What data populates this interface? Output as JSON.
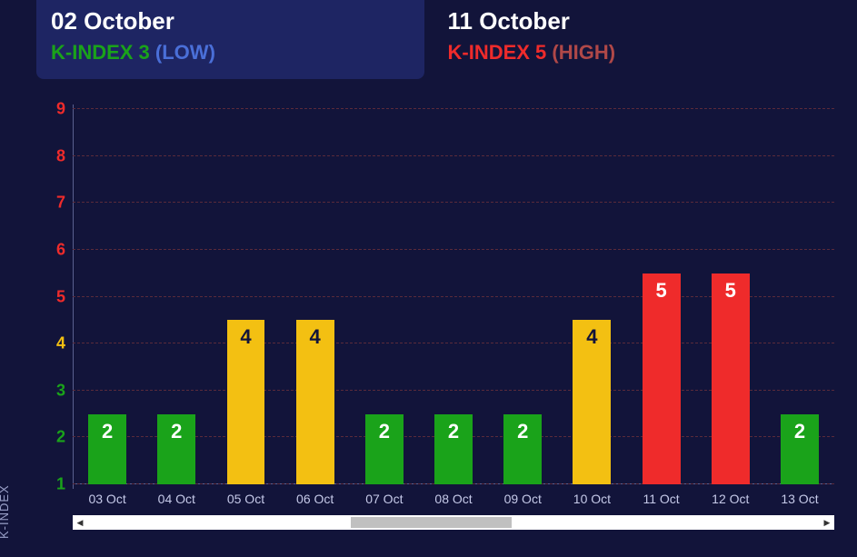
{
  "colors": {
    "bg": "#12143a",
    "card_active_bg": "#1e2563",
    "green": "#1aa31a",
    "yellow": "#f3c012",
    "red": "#ef2b2b",
    "white": "#ffffff",
    "axis_text": "#c5c9e8",
    "axis_line": "#5a608f",
    "grid_dash": "#5a2a3a",
    "ytitle": "#9aa0c8"
  },
  "header": {
    "left": {
      "date": "02 October",
      "index_label": "K-INDEX 3",
      "index_color": "#1aa31a",
      "level": "(LOW)",
      "level_color": "#4a6fd8",
      "active": true
    },
    "right": {
      "date": "11 October",
      "index_label": "K-INDEX 5",
      "index_color": "#ef2b2b",
      "level": "(HIGH)",
      "level_color": "#b04848",
      "active": false
    }
  },
  "chart": {
    "type": "bar",
    "y_title": "K-INDEX",
    "ymin": 1,
    "ymax": 9,
    "yticks": [
      {
        "v": 1,
        "color": "#1aa31a"
      },
      {
        "v": 2,
        "color": "#1aa31a"
      },
      {
        "v": 3,
        "color": "#1aa31a"
      },
      {
        "v": 4,
        "color": "#f3c012"
      },
      {
        "v": 5,
        "color": "#ef2b2b"
      },
      {
        "v": 6,
        "color": "#ef2b2b"
      },
      {
        "v": 7,
        "color": "#ef2b2b"
      },
      {
        "v": 8,
        "color": "#ef2b2b"
      },
      {
        "v": 9,
        "color": "#ef2b2b"
      }
    ],
    "grid_dash_at": [
      1,
      2,
      3,
      4,
      5,
      6,
      7,
      8,
      9
    ],
    "bars": [
      {
        "label": "03 Oct",
        "value": 2,
        "fill": "#1aa31a",
        "text_color": "#ffffff"
      },
      {
        "label": "04 Oct",
        "value": 2,
        "fill": "#1aa31a",
        "text_color": "#ffffff"
      },
      {
        "label": "05 Oct",
        "value": 4,
        "fill": "#f3c012",
        "text_color": "#12143a"
      },
      {
        "label": "06 Oct",
        "value": 4,
        "fill": "#f3c012",
        "text_color": "#12143a"
      },
      {
        "label": "07 Oct",
        "value": 2,
        "fill": "#1aa31a",
        "text_color": "#ffffff"
      },
      {
        "label": "08 Oct",
        "value": 2,
        "fill": "#1aa31a",
        "text_color": "#ffffff"
      },
      {
        "label": "09 Oct",
        "value": 2,
        "fill": "#1aa31a",
        "text_color": "#ffffff"
      },
      {
        "label": "10 Oct",
        "value": 4,
        "fill": "#f3c012",
        "text_color": "#12143a"
      },
      {
        "label": "11 Oct",
        "value": 5,
        "fill": "#ef2b2b",
        "text_color": "#ffffff"
      },
      {
        "label": "12 Oct",
        "value": 5,
        "fill": "#ef2b2b",
        "text_color": "#ffffff"
      },
      {
        "label": "13 Oct",
        "value": 2,
        "fill": "#1aa31a",
        "text_color": "#ffffff"
      }
    ],
    "bar_top_offset": 0.5,
    "scrollbar": {
      "thumb_left_pct": 36,
      "thumb_width_pct": 22
    }
  }
}
